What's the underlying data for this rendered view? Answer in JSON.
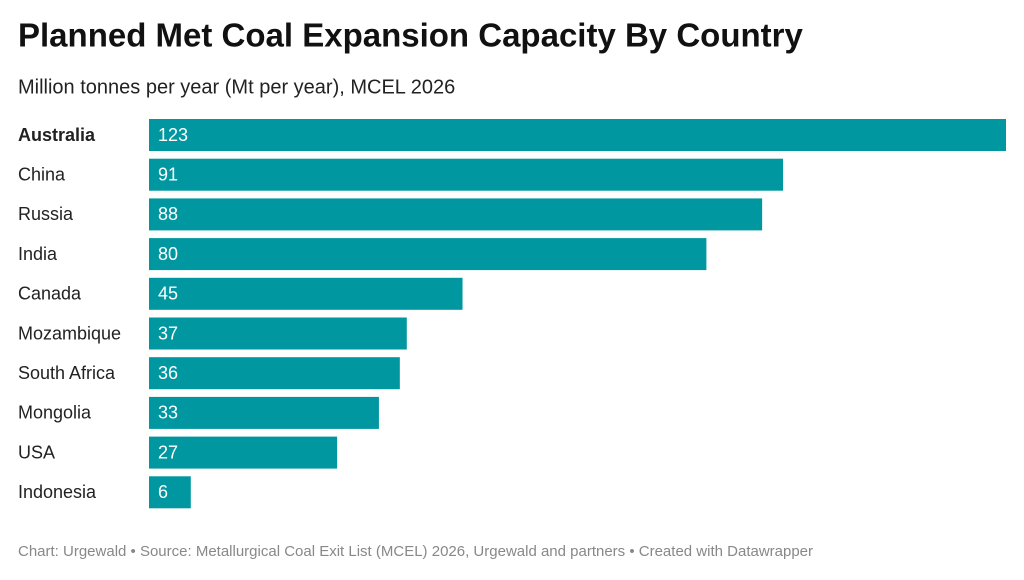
{
  "chart_data": {
    "type": "bar",
    "orientation": "horizontal",
    "title": "Planned Met Coal Expansion Capacity By Country",
    "subtitle": "Million tonnes per year (Mt per year), MCEL 2026",
    "categories": [
      "Australia",
      "China",
      "Russia",
      "India",
      "Canada",
      "Mozambique",
      "South Africa",
      "Mongolia",
      "USA",
      "Indonesia"
    ],
    "values": [
      123,
      91,
      88,
      80,
      45,
      37,
      36,
      33,
      27,
      6
    ],
    "color": "#0097a0",
    "xlim": [
      0,
      123
    ],
    "footer": "Chart: Urgewald • Source: Metallurgical Coal Exit List (MCEL) 2026, Urgewald and partners • Created with Datawrapper"
  }
}
